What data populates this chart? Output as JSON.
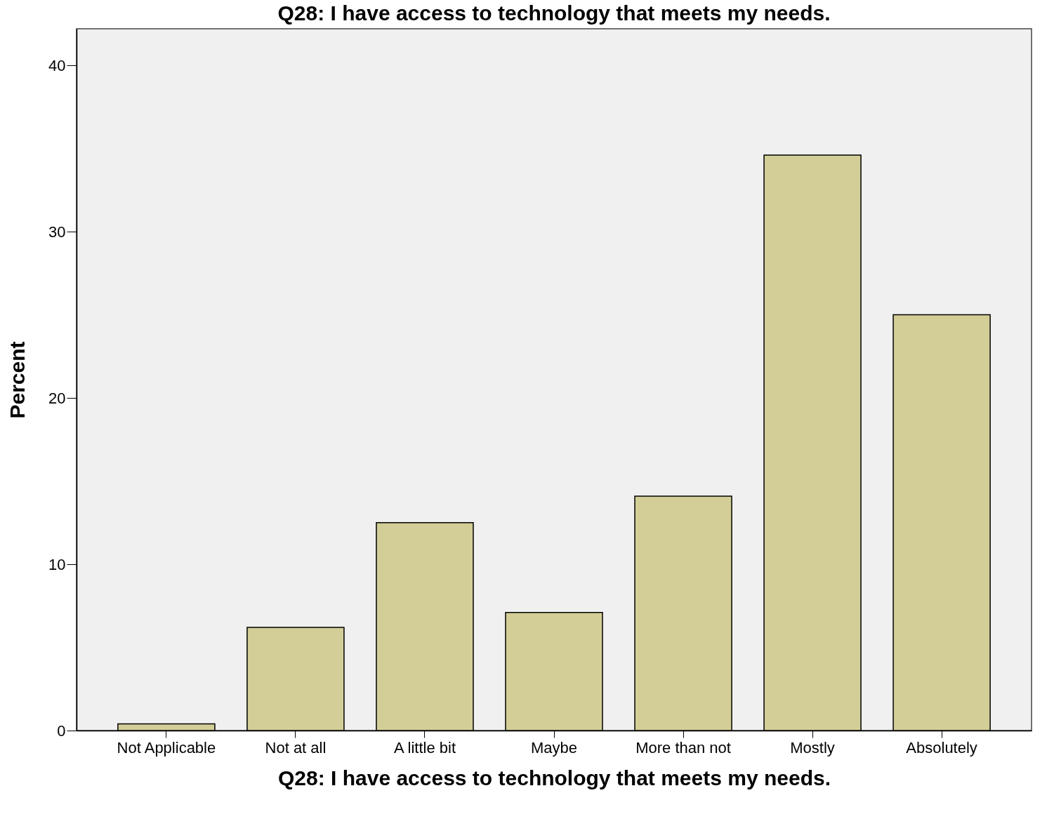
{
  "chart_data": {
    "type": "bar",
    "title": "Q28: I have access to technology that meets my needs.",
    "xlabel": "Q28: I have access to technology that meets my needs.",
    "ylabel": "Percent",
    "categories": [
      "Not Applicable",
      "Not at all",
      "A little bit",
      "Maybe",
      "More than not",
      "Mostly",
      "Absolutely"
    ],
    "values": [
      0.4,
      6.2,
      12.5,
      7.1,
      14.1,
      34.6,
      25.0
    ],
    "color": "#d3ce97",
    "ylim": [
      0,
      42.2
    ],
    "yticks": [
      0,
      10,
      20,
      30,
      40
    ],
    "grid": false
  }
}
